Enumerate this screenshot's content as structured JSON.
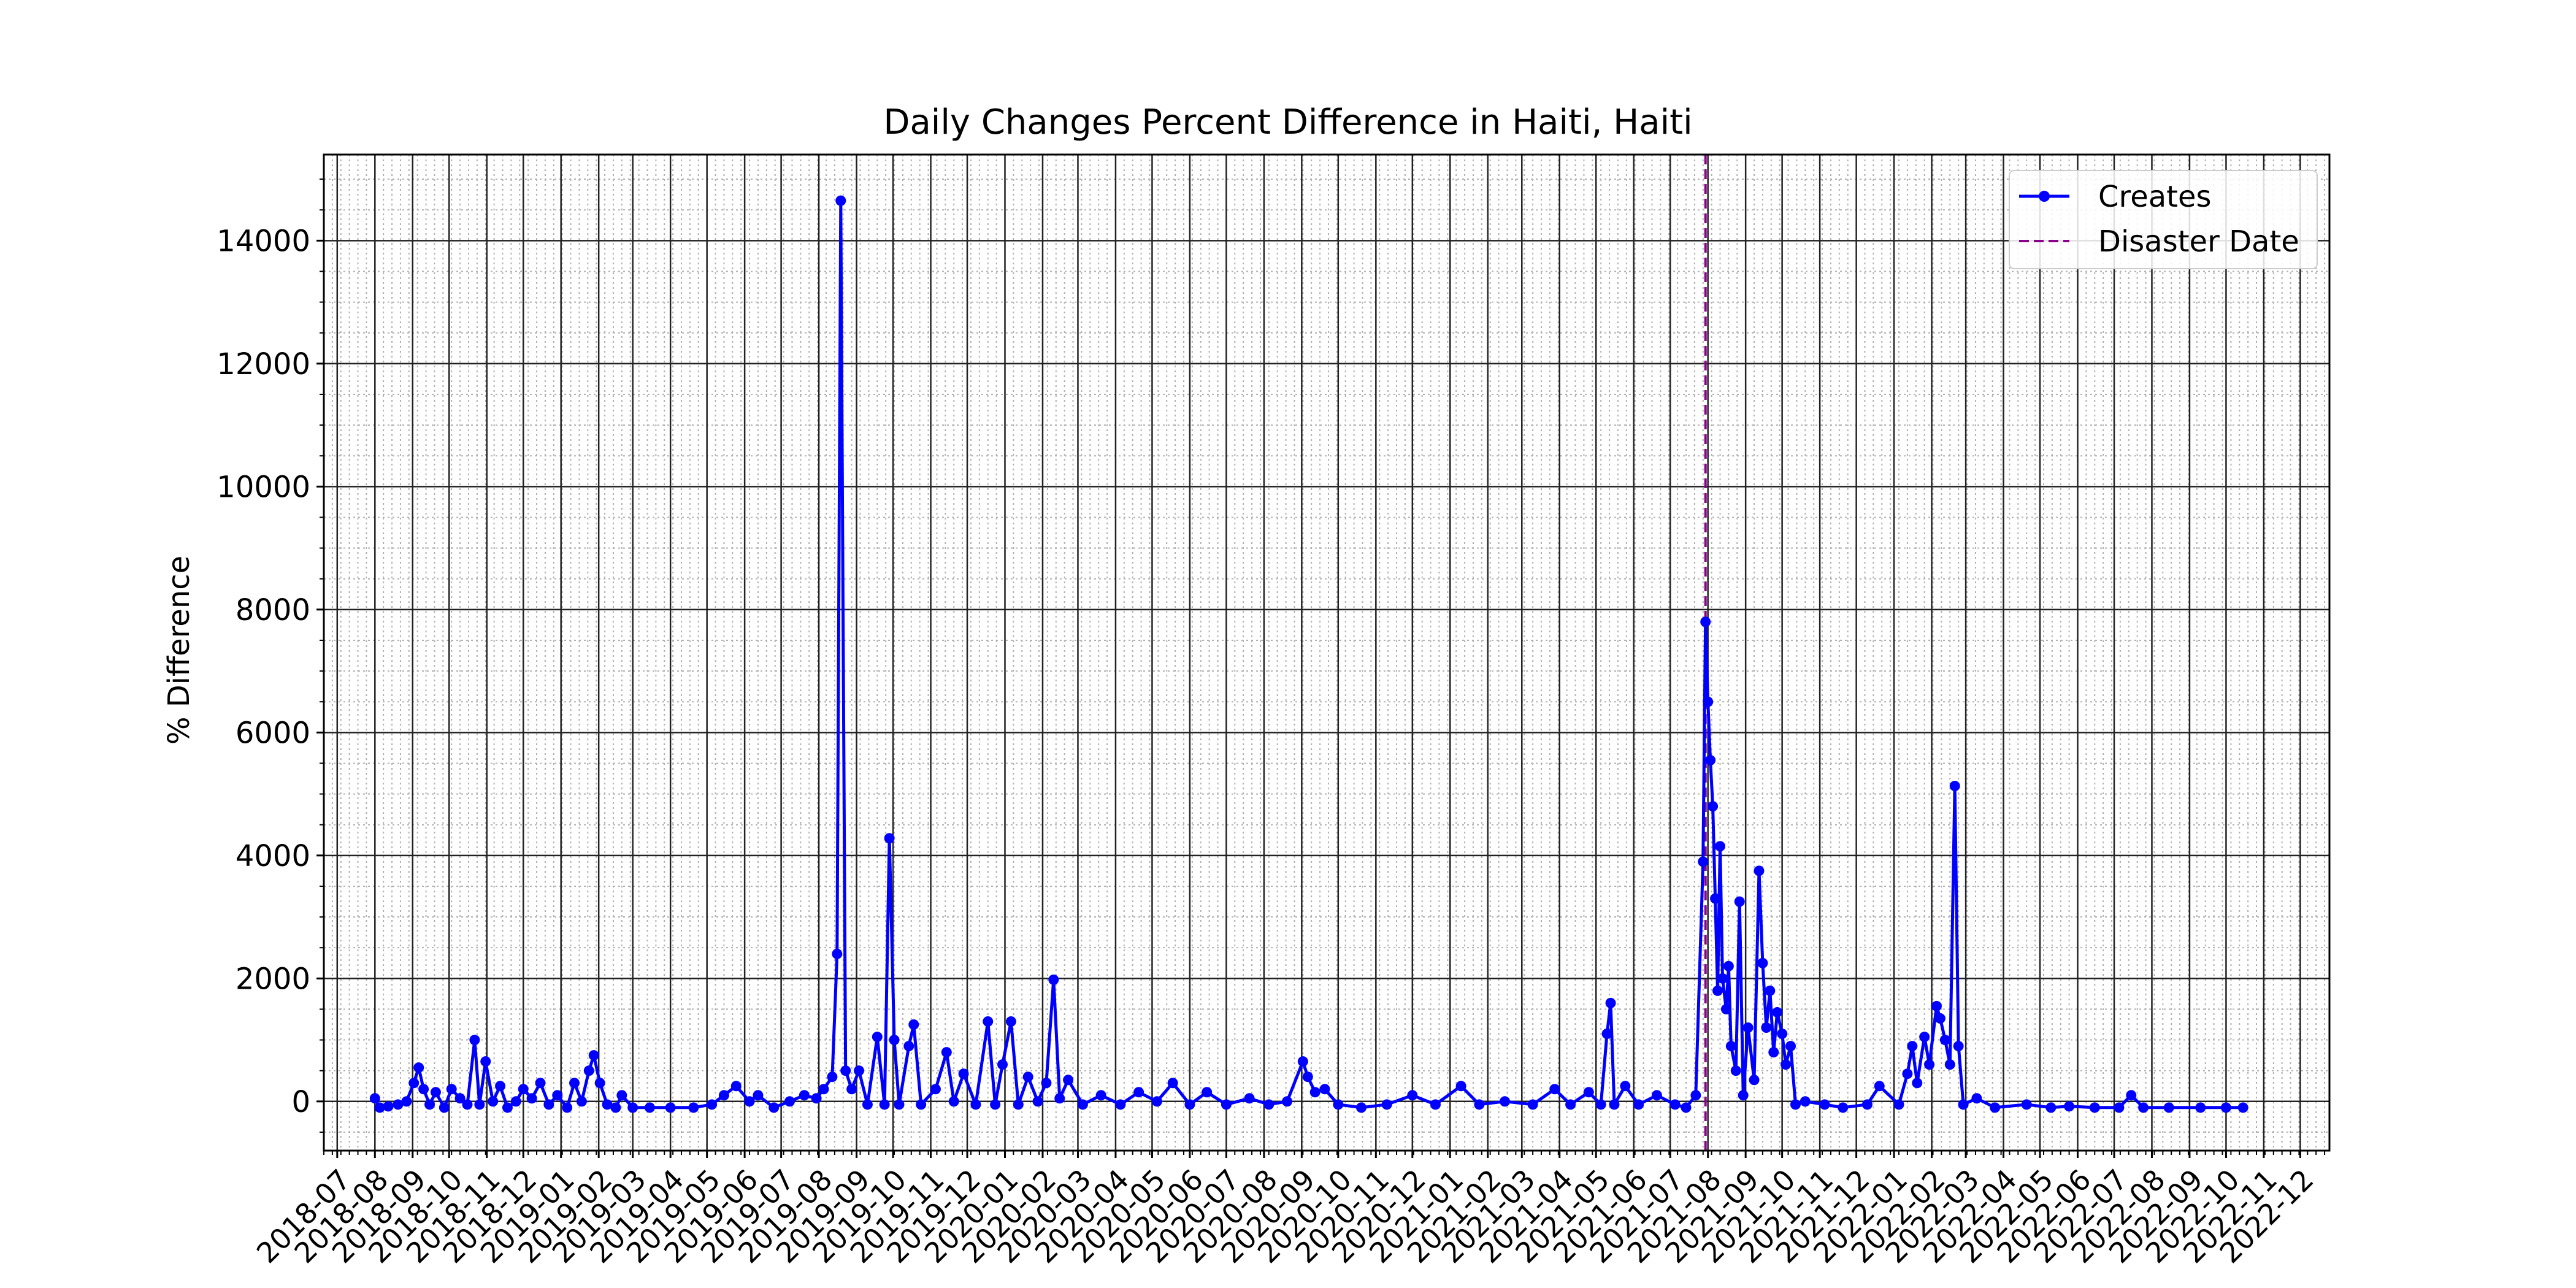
{
  "chart_data": {
    "type": "line",
    "title": "Daily Changes Percent Difference in Haiti, Haiti",
    "xlabel": "",
    "ylabel": "% Difference",
    "x_range": [
      "2018-06-20",
      "2022-12-25"
    ],
    "ylim": [
      -800,
      15400
    ],
    "yticks": [
      0,
      2000,
      4000,
      6000,
      8000,
      10000,
      12000,
      14000
    ],
    "xticks": [
      "2018-07",
      "2018-08",
      "2018-09",
      "2018-10",
      "2018-11",
      "2018-12",
      "2019-01",
      "2019-02",
      "2019-03",
      "2019-04",
      "2019-05",
      "2019-06",
      "2019-07",
      "2019-08",
      "2019-09",
      "2019-10",
      "2019-11",
      "2019-12",
      "2020-01",
      "2020-02",
      "2020-03",
      "2020-04",
      "2020-05",
      "2020-06",
      "2020-07",
      "2020-08",
      "2020-09",
      "2020-10",
      "2020-11",
      "2020-12",
      "2021-01",
      "2021-02",
      "2021-03",
      "2021-04",
      "2021-05",
      "2021-06",
      "2021-07",
      "2021-08",
      "2021-09",
      "2021-10",
      "2021-11",
      "2021-12",
      "2022-01",
      "2022-02",
      "2022-03",
      "2022-04",
      "2022-05",
      "2022-06",
      "2022-07",
      "2022-08",
      "2022-09",
      "2022-10",
      "2022-11",
      "2022-12"
    ],
    "grid": true,
    "legend_position": "top-right",
    "series": [
      {
        "name": "Creates",
        "color": "#0000ff",
        "points": [
          [
            "2018-08-01",
            50
          ],
          [
            "2018-08-05",
            -100
          ],
          [
            "2018-08-12",
            -80
          ],
          [
            "2018-08-20",
            -50
          ],
          [
            "2018-08-27",
            0
          ],
          [
            "2018-09-02",
            300
          ],
          [
            "2018-09-06",
            550
          ],
          [
            "2018-09-10",
            200
          ],
          [
            "2018-09-15",
            -50
          ],
          [
            "2018-09-20",
            150
          ],
          [
            "2018-09-27",
            -100
          ],
          [
            "2018-10-03",
            200
          ],
          [
            "2018-10-10",
            50
          ],
          [
            "2018-10-16",
            -50
          ],
          [
            "2018-10-22",
            1000
          ],
          [
            "2018-10-26",
            -50
          ],
          [
            "2018-10-31",
            650
          ],
          [
            "2018-11-06",
            0
          ],
          [
            "2018-11-12",
            250
          ],
          [
            "2018-11-18",
            -100
          ],
          [
            "2018-11-25",
            0
          ],
          [
            "2018-12-01",
            200
          ],
          [
            "2018-12-08",
            50
          ],
          [
            "2018-12-15",
            300
          ],
          [
            "2018-12-22",
            -50
          ],
          [
            "2018-12-29",
            100
          ],
          [
            "2019-01-06",
            -100
          ],
          [
            "2019-01-12",
            300
          ],
          [
            "2019-01-18",
            0
          ],
          [
            "2019-01-24",
            500
          ],
          [
            "2019-01-28",
            750
          ],
          [
            "2019-02-02",
            300
          ],
          [
            "2019-02-08",
            -50
          ],
          [
            "2019-02-15",
            -100
          ],
          [
            "2019-02-20",
            100
          ],
          [
            "2019-03-01",
            -100
          ],
          [
            "2019-03-15",
            -100
          ],
          [
            "2019-04-01",
            -100
          ],
          [
            "2019-04-20",
            -100
          ],
          [
            "2019-05-05",
            -50
          ],
          [
            "2019-05-15",
            100
          ],
          [
            "2019-05-25",
            250
          ],
          [
            "2019-06-05",
            0
          ],
          [
            "2019-06-12",
            100
          ],
          [
            "2019-06-25",
            -100
          ],
          [
            "2019-07-08",
            0
          ],
          [
            "2019-07-20",
            100
          ],
          [
            "2019-07-30",
            50
          ],
          [
            "2019-08-05",
            200
          ],
          [
            "2019-08-12",
            400
          ],
          [
            "2019-08-16",
            2400
          ],
          [
            "2019-08-19",
            14650
          ],
          [
            "2019-08-23",
            500
          ],
          [
            "2019-08-28",
            200
          ],
          [
            "2019-09-03",
            500
          ],
          [
            "2019-09-10",
            -50
          ],
          [
            "2019-09-18",
            1050
          ],
          [
            "2019-09-24",
            -50
          ],
          [
            "2019-09-28",
            4280
          ],
          [
            "2019-10-02",
            1000
          ],
          [
            "2019-10-06",
            -50
          ],
          [
            "2019-10-14",
            900
          ],
          [
            "2019-10-18",
            1250
          ],
          [
            "2019-10-24",
            -50
          ],
          [
            "2019-11-05",
            200
          ],
          [
            "2019-11-14",
            800
          ],
          [
            "2019-11-20",
            0
          ],
          [
            "2019-11-28",
            450
          ],
          [
            "2019-12-08",
            -50
          ],
          [
            "2019-12-18",
            1300
          ],
          [
            "2019-12-24",
            -50
          ],
          [
            "2019-12-30",
            600
          ],
          [
            "2020-01-06",
            1300
          ],
          [
            "2020-01-12",
            -50
          ],
          [
            "2020-01-20",
            400
          ],
          [
            "2020-01-28",
            0
          ],
          [
            "2020-02-04",
            300
          ],
          [
            "2020-02-10",
            1980
          ],
          [
            "2020-02-15",
            50
          ],
          [
            "2020-02-22",
            350
          ],
          [
            "2020-03-05",
            -50
          ],
          [
            "2020-03-20",
            100
          ],
          [
            "2020-04-05",
            -50
          ],
          [
            "2020-04-20",
            150
          ],
          [
            "2020-05-05",
            0
          ],
          [
            "2020-05-18",
            300
          ],
          [
            "2020-06-01",
            -50
          ],
          [
            "2020-06-15",
            150
          ],
          [
            "2020-07-01",
            -50
          ],
          [
            "2020-07-20",
            50
          ],
          [
            "2020-08-05",
            -50
          ],
          [
            "2020-08-20",
            0
          ],
          [
            "2020-09-02",
            650
          ],
          [
            "2020-09-06",
            400
          ],
          [
            "2020-09-12",
            150
          ],
          [
            "2020-09-20",
            200
          ],
          [
            "2020-10-01",
            -50
          ],
          [
            "2020-10-20",
            -100
          ],
          [
            "2020-11-10",
            -50
          ],
          [
            "2020-12-01",
            100
          ],
          [
            "2020-12-20",
            -50
          ],
          [
            "2021-01-10",
            250
          ],
          [
            "2021-01-25",
            -50
          ],
          [
            "2021-02-15",
            0
          ],
          [
            "2021-03-10",
            -50
          ],
          [
            "2021-03-28",
            200
          ],
          [
            "2021-04-10",
            -50
          ],
          [
            "2021-04-25",
            150
          ],
          [
            "2021-05-05",
            -50
          ],
          [
            "2021-05-10",
            1100
          ],
          [
            "2021-05-13",
            1600
          ],
          [
            "2021-05-16",
            -50
          ],
          [
            "2021-05-25",
            250
          ],
          [
            "2021-06-05",
            -50
          ],
          [
            "2021-06-20",
            100
          ],
          [
            "2021-07-05",
            -50
          ],
          [
            "2021-07-14",
            -100
          ],
          [
            "2021-07-22",
            100
          ],
          [
            "2021-07-28",
            3900
          ],
          [
            "2021-07-30",
            7800
          ],
          [
            "2021-08-01",
            6500
          ],
          [
            "2021-08-03",
            5550
          ],
          [
            "2021-08-05",
            4800
          ],
          [
            "2021-08-07",
            3300
          ],
          [
            "2021-08-09",
            1800
          ],
          [
            "2021-08-11",
            4150
          ],
          [
            "2021-08-13",
            2000
          ],
          [
            "2021-08-16",
            1500
          ],
          [
            "2021-08-18",
            2200
          ],
          [
            "2021-08-20",
            900
          ],
          [
            "2021-08-24",
            500
          ],
          [
            "2021-08-27",
            3250
          ],
          [
            "2021-08-30",
            100
          ],
          [
            "2021-09-03",
            1200
          ],
          [
            "2021-09-08",
            350
          ],
          [
            "2021-09-12",
            3750
          ],
          [
            "2021-09-15",
            2250
          ],
          [
            "2021-09-18",
            1200
          ],
          [
            "2021-09-21",
            1800
          ],
          [
            "2021-09-24",
            800
          ],
          [
            "2021-09-27",
            1450
          ],
          [
            "2021-10-01",
            1100
          ],
          [
            "2021-10-04",
            600
          ],
          [
            "2021-10-08",
            900
          ],
          [
            "2021-10-12",
            -50
          ],
          [
            "2021-10-20",
            0
          ],
          [
            "2021-11-05",
            -50
          ],
          [
            "2021-11-20",
            -100
          ],
          [
            "2021-12-10",
            -50
          ],
          [
            "2021-12-20",
            250
          ],
          [
            "2022-01-05",
            -50
          ],
          [
            "2022-01-12",
            450
          ],
          [
            "2022-01-16",
            900
          ],
          [
            "2022-01-20",
            300
          ],
          [
            "2022-01-26",
            1050
          ],
          [
            "2022-01-30",
            600
          ],
          [
            "2022-02-05",
            1550
          ],
          [
            "2022-02-08",
            1350
          ],
          [
            "2022-02-12",
            1000
          ],
          [
            "2022-02-16",
            600
          ],
          [
            "2022-02-20",
            5130
          ],
          [
            "2022-02-23",
            900
          ],
          [
            "2022-02-27",
            -50
          ],
          [
            "2022-03-10",
            50
          ],
          [
            "2022-03-25",
            -100
          ],
          [
            "2022-04-20",
            -50
          ],
          [
            "2022-05-10",
            -100
          ],
          [
            "2022-05-25",
            -80
          ],
          [
            "2022-06-15",
            -100
          ],
          [
            "2022-07-05",
            -100
          ],
          [
            "2022-07-15",
            100
          ],
          [
            "2022-07-25",
            -100
          ],
          [
            "2022-08-15",
            -100
          ],
          [
            "2022-09-10",
            -100
          ],
          [
            "2022-10-01",
            -100
          ],
          [
            "2022-10-15",
            -100
          ]
        ]
      }
    ],
    "vlines": [
      {
        "name": "Disaster Date",
        "x": "2021-07-30",
        "color": "#8b008b",
        "style": "dashed"
      }
    ]
  }
}
